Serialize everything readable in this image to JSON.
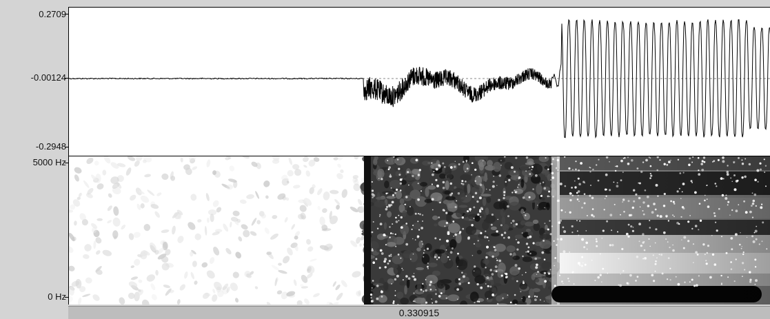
{
  "waveform": {
    "max_label": "0.2709",
    "mid_label": "-0.00124",
    "min_label": "-0.2948",
    "max_value": 0.2709,
    "mid_value": -0.00124,
    "min_value": -0.2948
  },
  "spectrogram": {
    "top_label": "5000 Hz",
    "bottom_label": "0 Hz",
    "top_value_hz": 5000,
    "bottom_value_hz": 0
  },
  "time_bar": {
    "duration_label": "0.330915"
  },
  "colors": {
    "background": "#d4d4d4",
    "panel": "#ffffff",
    "waveform_line": "#000000",
    "time_bar": "#bdbdbd"
  }
}
